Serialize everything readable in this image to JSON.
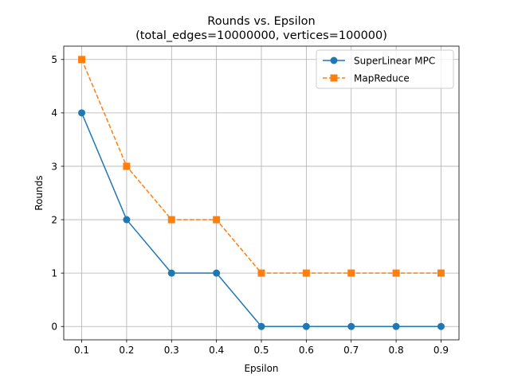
{
  "chart_data": {
    "type": "line",
    "title_line1": "Rounds vs. Epsilon",
    "title_line2": "(total_edges=10000000, vertices=100000)",
    "xlabel": "Epsilon",
    "ylabel": "Rounds",
    "x": [
      0.1,
      0.2,
      0.3,
      0.4,
      0.5,
      0.6,
      0.7,
      0.8,
      0.9
    ],
    "xticks": [
      "0.1",
      "0.2",
      "0.3",
      "0.4",
      "0.5",
      "0.6",
      "0.7",
      "0.8",
      "0.9"
    ],
    "yticks": [
      "0",
      "1",
      "2",
      "3",
      "4",
      "5"
    ],
    "xlim": [
      0.06,
      0.94
    ],
    "ylim": [
      -0.25,
      5.25
    ],
    "grid": true,
    "legend_position": "top-right",
    "series": [
      {
        "name": "SuperLinear MPC",
        "values": [
          4,
          2,
          1,
          1,
          0,
          0,
          0,
          0,
          0
        ],
        "color": "#1f77b4",
        "marker": "circle",
        "linestyle": "solid"
      },
      {
        "name": "MapReduce",
        "values": [
          5,
          3,
          2,
          2,
          1,
          1,
          1,
          1,
          1
        ],
        "color": "#ff7f0e",
        "marker": "square",
        "linestyle": "dashed"
      }
    ]
  }
}
